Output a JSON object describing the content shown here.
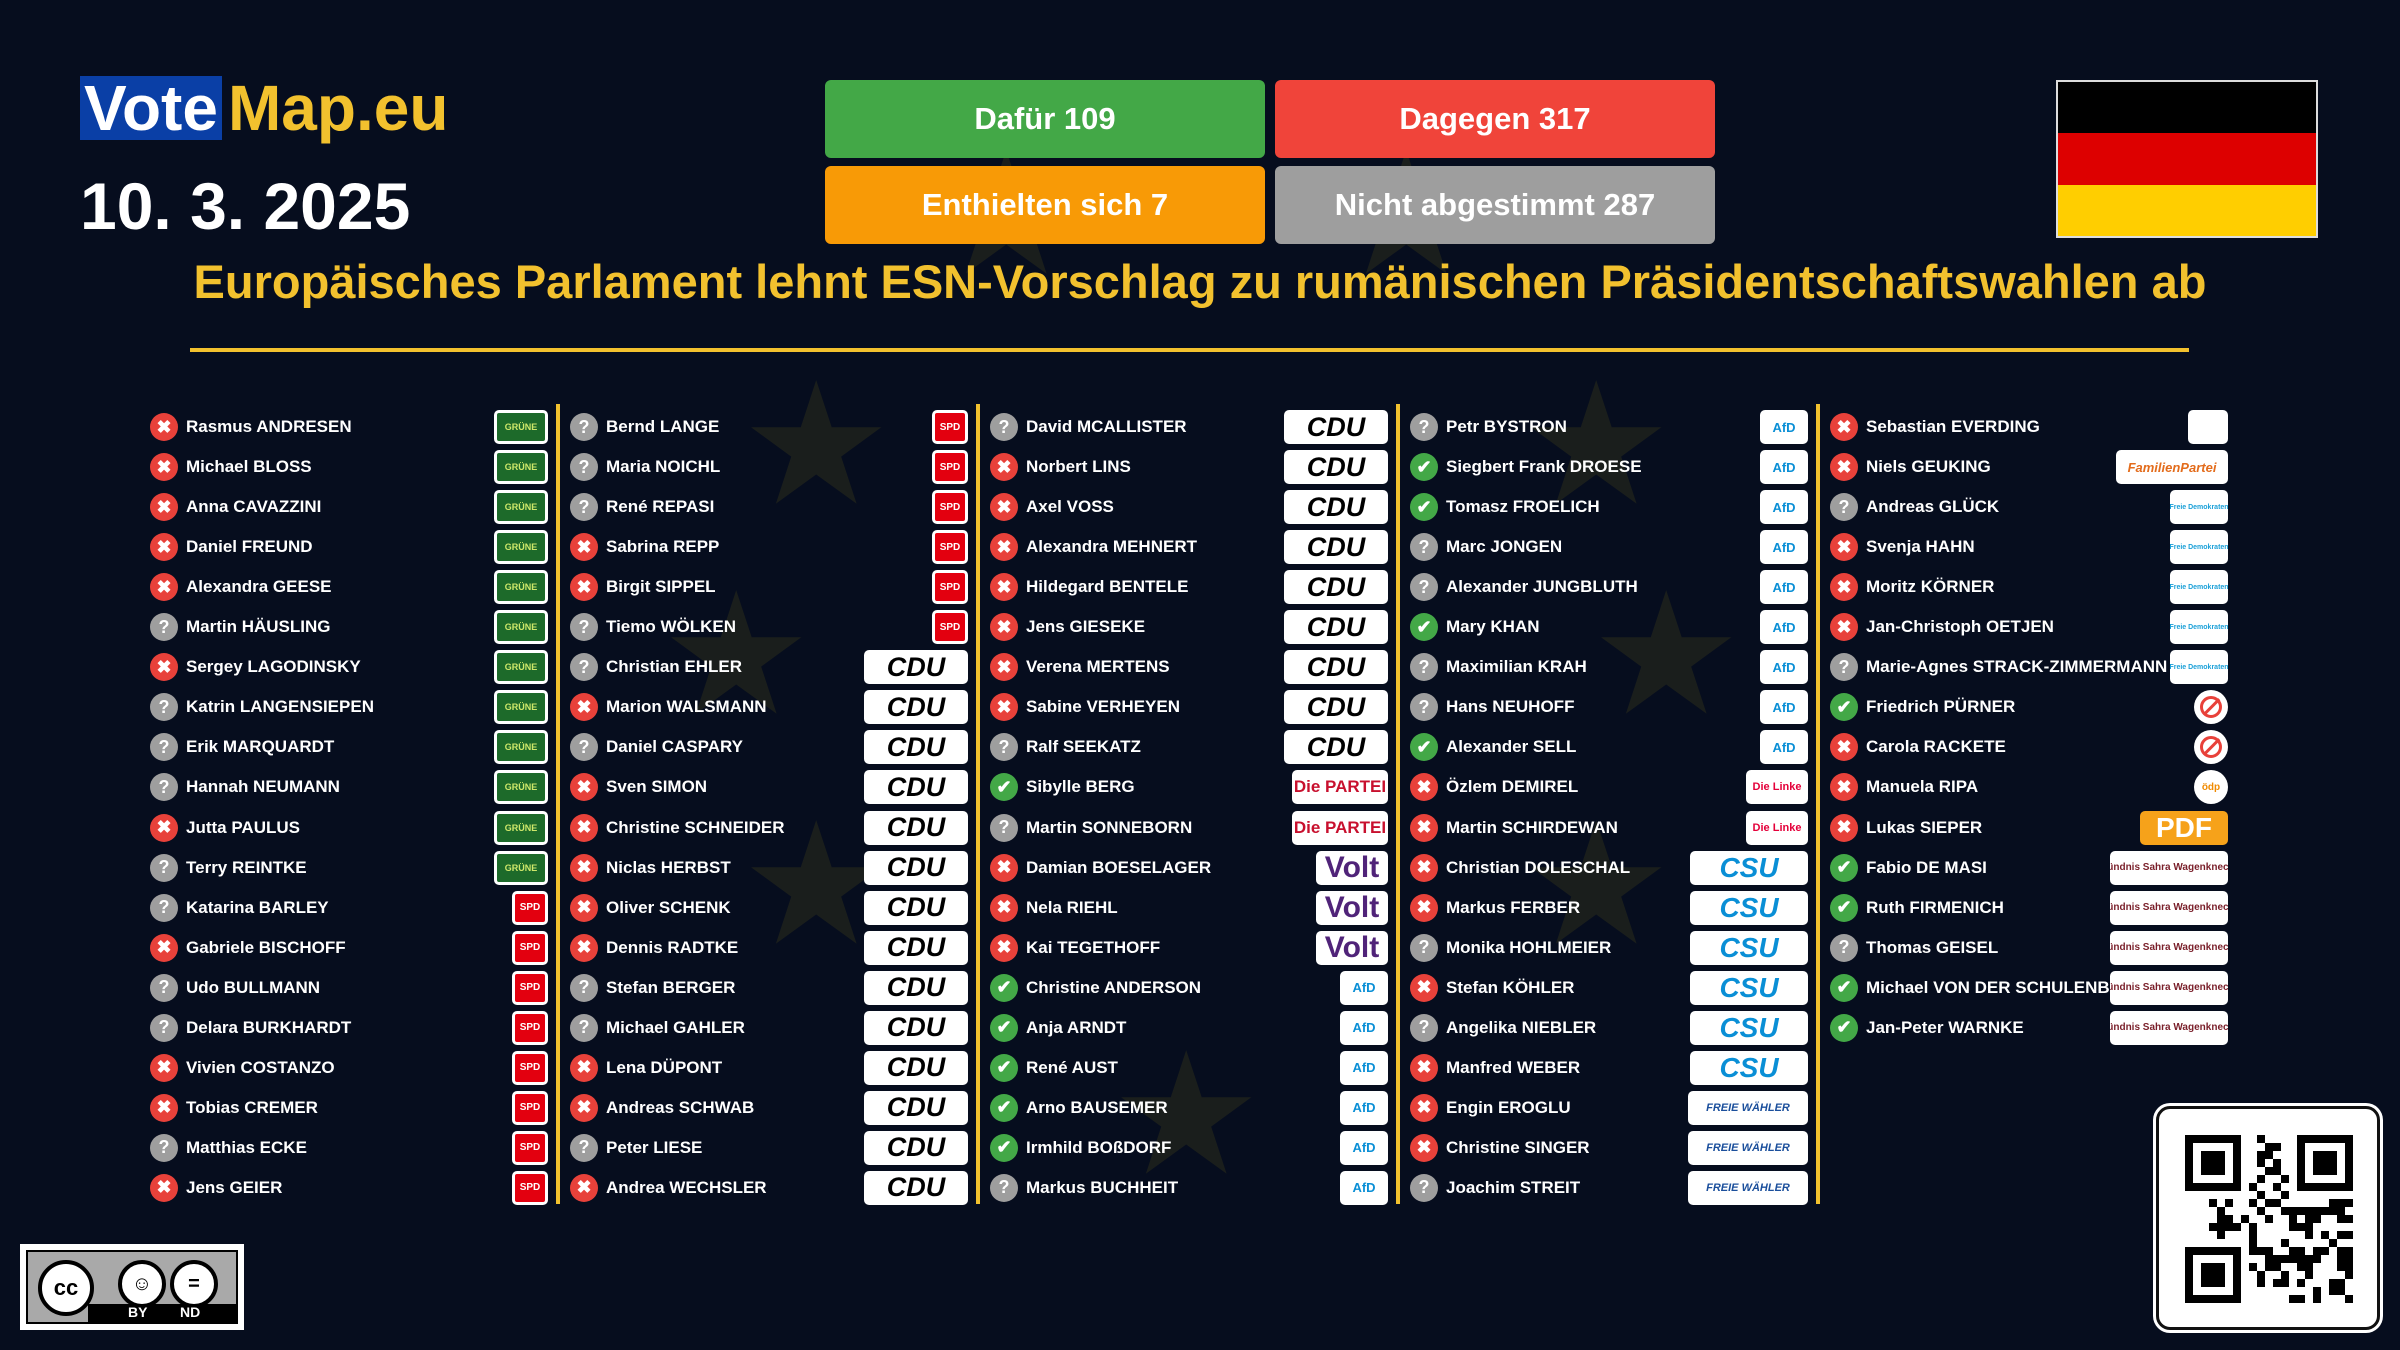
{
  "brand": {
    "vote": "Vote",
    "map": "Map.eu"
  },
  "date": "10. 3. 2025",
  "tallies": {
    "for": "Dafür 109",
    "against": "Dagegen 317",
    "abstained": "Enthielten sich 7",
    "not_voted": "Nicht abgestimmt 287"
  },
  "flag_colors": [
    "#000000",
    "#dd0000",
    "#ffce00"
  ],
  "title": "Europäisches Parlament lehnt ESN-Vorschlag zu rumänischen Präsidentschaftswahlen ab",
  "vote_icons": {
    "x": "✖",
    "c": "✔",
    "q": "?"
  },
  "party_logos": {
    "GRUENE": "GRÜNE",
    "SPD": "SPD",
    "CDU": "CDU",
    "PARTEI": "Die PARTEI",
    "VOLT": "Volt",
    "AFD": "AfD",
    "LINKE": "Die Linke",
    "CSU": "CSU",
    "FW": "FREIE WÄHLER",
    "EVP": "",
    "FAM": "FamilienPartei",
    "FDP": "Freie Demokraten",
    "NO": "⃠",
    "ODP": "ödp",
    "PDF": "PDF",
    "BSW": "Bündnis Sahra Wagenknecht"
  },
  "columns": [
    [
      {
        "name": "Rasmus ANDRESEN",
        "vote": "x",
        "party": "GRUENE"
      },
      {
        "name": "Michael BLOSS",
        "vote": "x",
        "party": "GRUENE"
      },
      {
        "name": "Anna CAVAZZINI",
        "vote": "x",
        "party": "GRUENE"
      },
      {
        "name": "Daniel FREUND",
        "vote": "x",
        "party": "GRUENE"
      },
      {
        "name": "Alexandra GEESE",
        "vote": "x",
        "party": "GRUENE"
      },
      {
        "name": "Martin HÄUSLING",
        "vote": "q",
        "party": "GRUENE"
      },
      {
        "name": "Sergey LAGODINSKY",
        "vote": "x",
        "party": "GRUENE"
      },
      {
        "name": "Katrin LANGENSIEPEN",
        "vote": "q",
        "party": "GRUENE"
      },
      {
        "name": "Erik MARQUARDT",
        "vote": "q",
        "party": "GRUENE"
      },
      {
        "name": "Hannah NEUMANN",
        "vote": "q",
        "party": "GRUENE"
      },
      {
        "name": "Jutta PAULUS",
        "vote": "x",
        "party": "GRUENE"
      },
      {
        "name": "Terry REINTKE",
        "vote": "q",
        "party": "GRUENE"
      },
      {
        "name": "Katarina BARLEY",
        "vote": "q",
        "party": "SPD"
      },
      {
        "name": "Gabriele BISCHOFF",
        "vote": "x",
        "party": "SPD"
      },
      {
        "name": "Udo BULLMANN",
        "vote": "q",
        "party": "SPD"
      },
      {
        "name": "Delara BURKHARDT",
        "vote": "q",
        "party": "SPD"
      },
      {
        "name": "Vivien COSTANZO",
        "vote": "x",
        "party": "SPD"
      },
      {
        "name": "Tobias CREMER",
        "vote": "x",
        "party": "SPD"
      },
      {
        "name": "Matthias ECKE",
        "vote": "q",
        "party": "SPD"
      },
      {
        "name": "Jens GEIER",
        "vote": "x",
        "party": "SPD"
      }
    ],
    [
      {
        "name": "Bernd LANGE",
        "vote": "q",
        "party": "SPD"
      },
      {
        "name": "Maria NOICHL",
        "vote": "q",
        "party": "SPD"
      },
      {
        "name": "René REPASI",
        "vote": "q",
        "party": "SPD"
      },
      {
        "name": "Sabrina REPP",
        "vote": "x",
        "party": "SPD"
      },
      {
        "name": "Birgit SIPPEL",
        "vote": "x",
        "party": "SPD"
      },
      {
        "name": "Tiemo WÖLKEN",
        "vote": "q",
        "party": "SPD"
      },
      {
        "name": "Christian EHLER",
        "vote": "q",
        "party": "CDU"
      },
      {
        "name": "Marion WALSMANN",
        "vote": "x",
        "party": "CDU"
      },
      {
        "name": "Daniel CASPARY",
        "vote": "q",
        "party": "CDU"
      },
      {
        "name": "Sven SIMON",
        "vote": "x",
        "party": "CDU"
      },
      {
        "name": "Christine SCHNEIDER",
        "vote": "x",
        "party": "CDU"
      },
      {
        "name": "Niclas HERBST",
        "vote": "x",
        "party": "CDU"
      },
      {
        "name": "Oliver SCHENK",
        "vote": "x",
        "party": "CDU"
      },
      {
        "name": "Dennis RADTKE",
        "vote": "x",
        "party": "CDU"
      },
      {
        "name": "Stefan BERGER",
        "vote": "q",
        "party": "CDU"
      },
      {
        "name": "Michael GAHLER",
        "vote": "q",
        "party": "CDU"
      },
      {
        "name": "Lena DÜPONT",
        "vote": "x",
        "party": "CDU"
      },
      {
        "name": "Andreas SCHWAB",
        "vote": "x",
        "party": "CDU"
      },
      {
        "name": "Peter LIESE",
        "vote": "q",
        "party": "CDU"
      },
      {
        "name": "Andrea WECHSLER",
        "vote": "x",
        "party": "CDU"
      }
    ],
    [
      {
        "name": "David MCALLISTER",
        "vote": "q",
        "party": "CDU"
      },
      {
        "name": "Norbert LINS",
        "vote": "x",
        "party": "CDU"
      },
      {
        "name": "Axel VOSS",
        "vote": "x",
        "party": "CDU"
      },
      {
        "name": "Alexandra MEHNERT",
        "vote": "x",
        "party": "CDU"
      },
      {
        "name": "Hildegard BENTELE",
        "vote": "x",
        "party": "CDU"
      },
      {
        "name": "Jens GIESEKE",
        "vote": "x",
        "party": "CDU"
      },
      {
        "name": "Verena MERTENS",
        "vote": "x",
        "party": "CDU"
      },
      {
        "name": "Sabine VERHEYEN",
        "vote": "x",
        "party": "CDU"
      },
      {
        "name": "Ralf SEEKATZ",
        "vote": "q",
        "party": "CDU"
      },
      {
        "name": "Sibylle BERG",
        "vote": "c",
        "party": "PARTEI"
      },
      {
        "name": "Martin SONNEBORN",
        "vote": "q",
        "party": "PARTEI"
      },
      {
        "name": "Damian BOESELAGER",
        "vote": "x",
        "party": "VOLT"
      },
      {
        "name": "Nela RIEHL",
        "vote": "x",
        "party": "VOLT"
      },
      {
        "name": "Kai TEGETHOFF",
        "vote": "x",
        "party": "VOLT"
      },
      {
        "name": "Christine ANDERSON",
        "vote": "c",
        "party": "AFD"
      },
      {
        "name": "Anja ARNDT",
        "vote": "c",
        "party": "AFD"
      },
      {
        "name": "René AUST",
        "vote": "c",
        "party": "AFD"
      },
      {
        "name": "Arno BAUSEMER",
        "vote": "c",
        "party": "AFD"
      },
      {
        "name": "Irmhild BOßDORF",
        "vote": "c",
        "party": "AFD"
      },
      {
        "name": "Markus BUCHHEIT",
        "vote": "q",
        "party": "AFD"
      }
    ],
    [
      {
        "name": "Petr BYSTRON",
        "vote": "q",
        "party": "AFD"
      },
      {
        "name": "Siegbert Frank DROESE",
        "vote": "c",
        "party": "AFD"
      },
      {
        "name": "Tomasz FROELICH",
        "vote": "c",
        "party": "AFD"
      },
      {
        "name": "Marc JONGEN",
        "vote": "q",
        "party": "AFD"
      },
      {
        "name": "Alexander JUNGBLUTH",
        "vote": "q",
        "party": "AFD"
      },
      {
        "name": "Mary KHAN",
        "vote": "c",
        "party": "AFD"
      },
      {
        "name": "Maximilian KRAH",
        "vote": "q",
        "party": "AFD"
      },
      {
        "name": "Hans NEUHOFF",
        "vote": "q",
        "party": "AFD"
      },
      {
        "name": "Alexander SELL",
        "vote": "c",
        "party": "AFD"
      },
      {
        "name": "Özlem DEMIREL",
        "vote": "x",
        "party": "LINKE"
      },
      {
        "name": "Martin SCHIRDEWAN",
        "vote": "x",
        "party": "LINKE"
      },
      {
        "name": "Christian DOLESCHAL",
        "vote": "x",
        "party": "CSU"
      },
      {
        "name": "Markus FERBER",
        "vote": "x",
        "party": "CSU"
      },
      {
        "name": "Monika HOHLMEIER",
        "vote": "q",
        "party": "CSU"
      },
      {
        "name": "Stefan KÖHLER",
        "vote": "x",
        "party": "CSU"
      },
      {
        "name": "Angelika NIEBLER",
        "vote": "q",
        "party": "CSU"
      },
      {
        "name": "Manfred WEBER",
        "vote": "x",
        "party": "CSU"
      },
      {
        "name": "Engin EROGLU",
        "vote": "x",
        "party": "FW"
      },
      {
        "name": "Christine SINGER",
        "vote": "x",
        "party": "FW"
      },
      {
        "name": "Joachim STREIT",
        "vote": "q",
        "party": "FW"
      }
    ],
    [
      {
        "name": "Sebastian EVERDING",
        "vote": "x",
        "party": "EVP"
      },
      {
        "name": "Niels GEUKING",
        "vote": "x",
        "party": "FAM"
      },
      {
        "name": "Andreas GLÜCK",
        "vote": "q",
        "party": "FDP"
      },
      {
        "name": "Svenja HAHN",
        "vote": "x",
        "party": "FDP"
      },
      {
        "name": "Moritz KÖRNER",
        "vote": "x",
        "party": "FDP"
      },
      {
        "name": "Jan-Christoph OETJEN",
        "vote": "x",
        "party": "FDP"
      },
      {
        "name": "Marie-Agnes STRACK-ZIMMERMANN",
        "vote": "q",
        "party": "FDP"
      },
      {
        "name": "Friedrich PÜRNER",
        "vote": "c",
        "party": "NO"
      },
      {
        "name": "Carola RACKETE",
        "vote": "x",
        "party": "NO"
      },
      {
        "name": "Manuela RIPA",
        "vote": "x",
        "party": "ODP"
      },
      {
        "name": "Lukas SIEPER",
        "vote": "x",
        "party": "PDF"
      },
      {
        "name": "Fabio DE MASI",
        "vote": "c",
        "party": "BSW"
      },
      {
        "name": "Ruth FIRMENICH",
        "vote": "c",
        "party": "BSW"
      },
      {
        "name": "Thomas GEISEL",
        "vote": "q",
        "party": "BSW"
      },
      {
        "name": "Michael VON DER SCHULENBURG",
        "vote": "c",
        "party": "BSW"
      },
      {
        "name": "Jan-Peter WARNKE",
        "vote": "c",
        "party": "BSW"
      }
    ]
  ],
  "license": {
    "by": "BY",
    "nd": "ND",
    "cc_icon": "cc-icon",
    "by_icon": "person-icon",
    "nd_icon": "equals-icon"
  },
  "qr_icon": "qr-code-icon"
}
